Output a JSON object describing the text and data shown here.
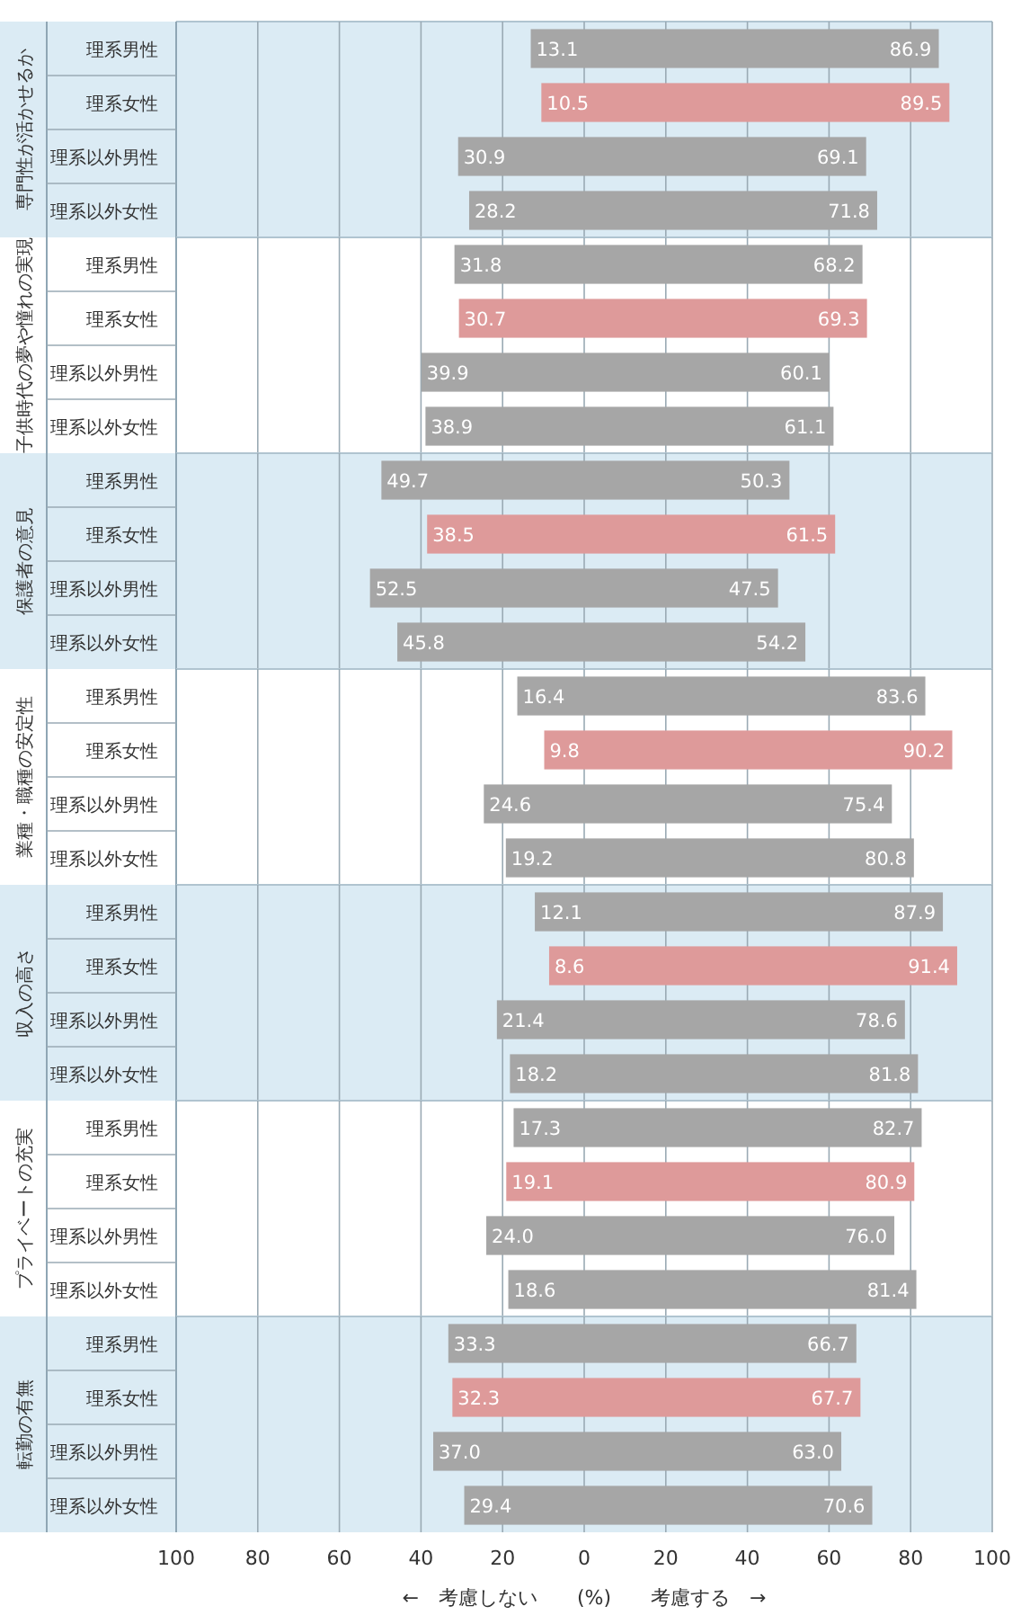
{
  "chart_data": [
    {
      "type": "bar",
      "orientation": "horizontal",
      "ylabel": "専門性が活かせるか",
      "categories": [
        "理系男性",
        "理系女性",
        "理系以外男性",
        "理系以外女性"
      ],
      "xlim": [
        -100,
        100
      ],
      "xticks": [
        -100,
        -80,
        -60,
        -40,
        -20,
        0,
        20,
        40,
        60,
        80,
        100
      ],
      "grid": "x",
      "tick_labels": "y",
      "series": [
        {
          "values": [
            13.1,
            10.5,
            30.9,
            28.2
          ],
          "base": [
            -13.1,
            -10.5,
            -30.9,
            -28.2
          ],
          "value_labels": [
            "13.1",
            "10.5",
            "30.9",
            "28.2"
          ],
          "colors": [
            "#a6a6a6",
            "#de9a9a",
            "#a6a6a6",
            "#a6a6a6"
          ]
        },
        {
          "values": [
            86.9,
            89.5,
            69.1,
            71.8
          ],
          "value_labels": [
            "86.9",
            "89.5",
            "69.1",
            "71.8"
          ],
          "colors": [
            "#a6a6a6",
            "#de9a9a",
            "#a6a6a6",
            "#a6a6a6"
          ]
        }
      ]
    },
    {
      "type": "bar",
      "orientation": "horizontal",
      "ylabel": "子供時代の夢や憧れの実現",
      "categories": [
        "理系男性",
        "理系女性",
        "理系以外男性",
        "理系以外女性"
      ],
      "xlim": [
        -100,
        100
      ],
      "xticks": [
        -100,
        -80,
        -60,
        -40,
        -20,
        0,
        20,
        40,
        60,
        80,
        100
      ],
      "grid": "x",
      "tick_labels": "y",
      "series": [
        {
          "values": [
            31.8,
            30.7,
            39.9,
            38.9
          ],
          "base": [
            -31.8,
            -30.7,
            -39.9,
            -38.9
          ],
          "value_labels": [
            "31.8",
            "30.7",
            "39.9",
            "38.9"
          ],
          "colors": [
            "#a6a6a6",
            "#de9a9a",
            "#a6a6a6",
            "#a6a6a6"
          ]
        },
        {
          "values": [
            68.2,
            69.3,
            60.1,
            61.1
          ],
          "value_labels": [
            "68.2",
            "69.3",
            "60.1",
            "61.1"
          ],
          "colors": [
            "#a6a6a6",
            "#de9a9a",
            "#a6a6a6",
            "#a6a6a6"
          ]
        }
      ]
    },
    {
      "type": "bar",
      "orientation": "horizontal",
      "ylabel": "保護者の意見",
      "categories": [
        "理系男性",
        "理系女性",
        "理系以外男性",
        "理系以外女性"
      ],
      "xlim": [
        -100,
        100
      ],
      "xticks": [
        -100,
        -80,
        -60,
        -40,
        -20,
        0,
        20,
        40,
        60,
        80,
        100
      ],
      "grid": "x",
      "tick_labels": "y",
      "series": [
        {
          "values": [
            49.7,
            38.5,
            52.5,
            45.8
          ],
          "base": [
            -49.7,
            -38.5,
            -52.5,
            -45.8
          ],
          "value_labels": [
            "49.7",
            "38.5",
            "52.5",
            "45.8"
          ],
          "colors": [
            "#a6a6a6",
            "#de9a9a",
            "#a6a6a6",
            "#a6a6a6"
          ]
        },
        {
          "values": [
            50.3,
            61.5,
            47.5,
            54.2
          ],
          "value_labels": [
            "50.3",
            "61.5",
            "47.5",
            "54.2"
          ],
          "colors": [
            "#a6a6a6",
            "#de9a9a",
            "#a6a6a6",
            "#a6a6a6"
          ]
        }
      ]
    },
    {
      "type": "bar",
      "orientation": "horizontal",
      "ylabel": "業種・職種の安定性",
      "categories": [
        "理系男性",
        "理系女性",
        "理系以外男性",
        "理系以外女性"
      ],
      "xlim": [
        -100,
        100
      ],
      "xticks": [
        -100,
        -80,
        -60,
        -40,
        -20,
        0,
        20,
        40,
        60,
        80,
        100
      ],
      "grid": "x",
      "tick_labels": "y",
      "series": [
        {
          "values": [
            16.4,
            9.8,
            24.6,
            19.2
          ],
          "base": [
            -16.4,
            -9.8,
            -24.6,
            -19.2
          ],
          "value_labels": [
            "16.4",
            "9.8",
            "24.6",
            "19.2"
          ],
          "colors": [
            "#a6a6a6",
            "#de9a9a",
            "#a6a6a6",
            "#a6a6a6"
          ]
        },
        {
          "values": [
            83.6,
            90.2,
            75.4,
            80.8
          ],
          "value_labels": [
            "83.6",
            "90.2",
            "75.4",
            "80.8"
          ],
          "colors": [
            "#a6a6a6",
            "#de9a9a",
            "#a6a6a6",
            "#a6a6a6"
          ]
        }
      ]
    },
    {
      "type": "bar",
      "orientation": "horizontal",
      "ylabel": "収入の高さ",
      "categories": [
        "理系男性",
        "理系女性",
        "理系以外男性",
        "理系以外女性"
      ],
      "xlim": [
        -100,
        100
      ],
      "xticks": [
        -100,
        -80,
        -60,
        -40,
        -20,
        0,
        20,
        40,
        60,
        80,
        100
      ],
      "grid": "x",
      "tick_labels": "y",
      "series": [
        {
          "values": [
            12.1,
            8.6,
            21.4,
            18.2
          ],
          "base": [
            -12.1,
            -8.6,
            -21.4,
            -18.2
          ],
          "value_labels": [
            "12.1",
            "8.6",
            "21.4",
            "18.2"
          ],
          "colors": [
            "#a6a6a6",
            "#de9a9a",
            "#a6a6a6",
            "#a6a6a6"
          ]
        },
        {
          "values": [
            87.9,
            91.4,
            78.6,
            81.8
          ],
          "value_labels": [
            "87.9",
            "91.4",
            "78.6",
            "81.8"
          ],
          "colors": [
            "#a6a6a6",
            "#de9a9a",
            "#a6a6a6",
            "#a6a6a6"
          ]
        }
      ]
    },
    {
      "type": "bar",
      "orientation": "horizontal",
      "ylabel": "プライベートの充実",
      "categories": [
        "理系男性",
        "理系女性",
        "理系以外男性",
        "理系以外女性"
      ],
      "xlim": [
        -100,
        100
      ],
      "xticks": [
        -100,
        -80,
        -60,
        -40,
        -20,
        0,
        20,
        40,
        60,
        80,
        100
      ],
      "grid": "x",
      "tick_labels": "y",
      "series": [
        {
          "values": [
            17.3,
            19.1,
            24.0,
            18.6
          ],
          "base": [
            -17.3,
            -19.1,
            -24.0,
            -18.6
          ],
          "value_labels": [
            "17.3",
            "19.1",
            "24.0",
            "18.6"
          ],
          "colors": [
            "#a6a6a6",
            "#de9a9a",
            "#a6a6a6",
            "#a6a6a6"
          ]
        },
        {
          "values": [
            82.7,
            80.9,
            76.0,
            81.4
          ],
          "value_labels": [
            "82.7",
            "80.9",
            "76.0",
            "81.4"
          ],
          "colors": [
            "#a6a6a6",
            "#de9a9a",
            "#a6a6a6",
            "#a6a6a6"
          ]
        }
      ]
    },
    {
      "type": "bar",
      "orientation": "horizontal",
      "ylabel": "転勤の有無",
      "xlabel": "←　考慮しない　　(%)　　考慮する　→",
      "categories": [
        "理系男性",
        "理系女性",
        "理系以外男性",
        "理系以外女性"
      ],
      "xlim": [
        -100,
        100
      ],
      "xticks": [
        {
          "value": -100,
          "label": "100"
        },
        {
          "value": -80,
          "label": "80"
        },
        {
          "value": -60,
          "label": "60"
        },
        {
          "value": -40,
          "label": "40"
        },
        {
          "value": -20,
          "label": "20"
        },
        0,
        20,
        40,
        60,
        80,
        100
      ],
      "grid": "x",
      "series": [
        {
          "values": [
            33.3,
            32.3,
            37.0,
            29.4
          ],
          "base": [
            -33.3,
            -32.3,
            -37.0,
            -29.4
          ],
          "value_labels": [
            "33.3",
            "32.3",
            "37.0",
            "29.4"
          ],
          "colors": [
            "#a6a6a6",
            "#de9a9a",
            "#a6a6a6",
            "#a6a6a6"
          ]
        },
        {
          "values": [
            66.7,
            67.7,
            63.0,
            70.6
          ],
          "value_labels": [
            "66.7",
            "67.7",
            "63.0",
            "70.6"
          ],
          "colors": [
            "#a6a6a6",
            "#de9a9a",
            "#a6a6a6",
            "#a6a6a6"
          ]
        }
      ]
    }
  ]
}
